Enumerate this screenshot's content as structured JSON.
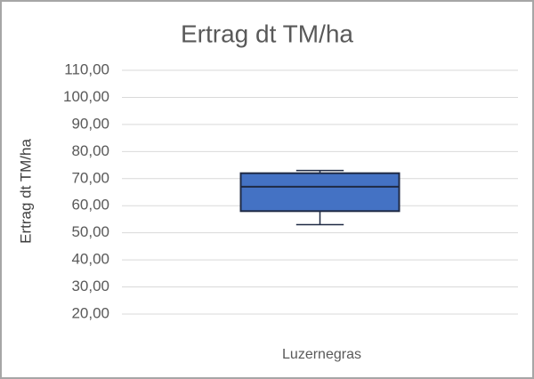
{
  "chart_data": {
    "type": "box",
    "title": "Ertrag dt TM/ha",
    "y_label": "Ertrag dt TM/ha",
    "categories": [
      "Luzernegras"
    ],
    "boxes": [
      {
        "min": 53,
        "q1": 58,
        "median": 67,
        "q3": 72,
        "max": 73
      }
    ],
    "color": "#4472c4",
    "edge_color": "#1f2a44",
    "ylim": [
      20,
      110
    ],
    "yticks": [
      {
        "value": 20,
        "label": "20,00"
      },
      {
        "value": 30,
        "label": "30,00"
      },
      {
        "value": 40,
        "label": "40,00"
      },
      {
        "value": 50,
        "label": "50,00"
      },
      {
        "value": 60,
        "label": "60,00"
      },
      {
        "value": 70,
        "label": "70,00"
      },
      {
        "value": 80,
        "label": "80,00"
      },
      {
        "value": 90,
        "label": "90,00"
      },
      {
        "value": 100,
        "label": "100,00"
      },
      {
        "value": 110,
        "label": "110,00"
      }
    ],
    "grid": true
  }
}
